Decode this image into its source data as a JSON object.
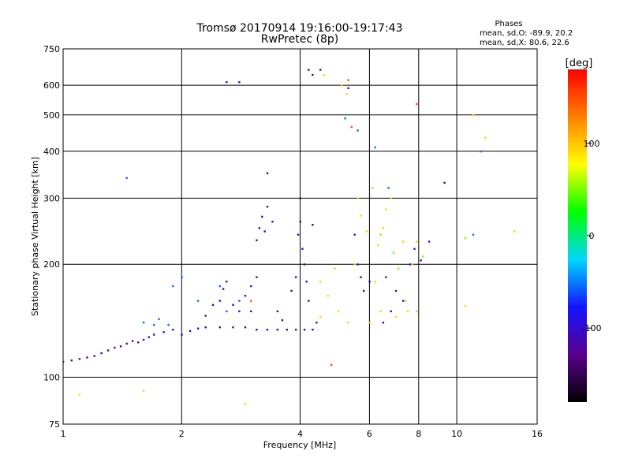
{
  "chart_data": {
    "type": "scatter",
    "title": "Tromsø 20170914 19:16:00-19:17:43",
    "subtitle": "RwPretec (8p)",
    "xlabel": "Frequency [MHz]",
    "ylabel": "Stationary phase Virtual Height [km]",
    "x_scale": "log",
    "y_scale": "log",
    "xlim": [
      1,
      16
    ],
    "ylim": [
      75,
      750
    ],
    "x_ticks": [
      1,
      2,
      4,
      6,
      8,
      10,
      16
    ],
    "y_ticks": [
      75,
      100,
      200,
      300,
      400,
      500,
      600,
      750
    ],
    "grid": true,
    "phases_box": {
      "title": "Phases",
      "line_o": "mean, sd,O: -89.9, 20.2",
      "line_x": "mean, sd,X:  80.6, 22.6"
    },
    "colorbar": {
      "label": "[deg]",
      "ticks": [
        100,
        0,
        -100
      ],
      "range": [
        -180,
        180
      ],
      "colors": [
        "#000000",
        "#5a008c",
        "#1414ff",
        "#00d7ff",
        "#00ff00",
        "#ffff00",
        "#ff8000",
        "#ff0000"
      ]
    },
    "series": [
      {
        "color_phase_deg": -110,
        "points": [
          [
            1.05,
            111
          ],
          [
            1.1,
            112
          ],
          [
            1.15,
            113
          ],
          [
            1.2,
            114
          ],
          [
            1.25,
            116
          ],
          [
            1.3,
            118
          ],
          [
            1.35,
            120
          ],
          [
            1.4,
            121
          ],
          [
            1.45,
            123
          ],
          [
            1.5,
            125
          ],
          [
            1.55,
            124
          ],
          [
            1.6,
            126
          ],
          [
            1.65,
            128
          ],
          [
            1.7,
            130
          ],
          [
            1.8,
            132
          ],
          [
            1.9,
            134
          ],
          [
            2.0,
            130
          ],
          [
            2.1,
            133
          ],
          [
            2.2,
            135
          ],
          [
            2.3,
            136
          ],
          [
            2.5,
            136
          ],
          [
            2.7,
            136
          ],
          [
            2.9,
            136
          ],
          [
            3.1,
            134
          ],
          [
            3.3,
            134
          ],
          [
            3.5,
            134
          ],
          [
            3.7,
            134
          ],
          [
            3.9,
            134
          ],
          [
            4.1,
            134
          ],
          [
            4.3,
            134
          ],
          [
            2.3,
            146
          ],
          [
            2.4,
            156
          ],
          [
            2.5,
            160
          ],
          [
            2.55,
            172
          ],
          [
            2.6,
            180
          ],
          [
            2.7,
            156
          ],
          [
            2.8,
            150
          ],
          [
            2.9,
            165
          ],
          [
            3.0,
            175
          ],
          [
            3.0,
            150
          ],
          [
            3.1,
            185
          ],
          [
            3.1,
            232
          ],
          [
            3.15,
            250
          ],
          [
            3.2,
            268
          ],
          [
            3.25,
            245
          ],
          [
            3.3,
            285
          ],
          [
            3.3,
            350
          ],
          [
            3.4,
            260
          ],
          [
            3.5,
            150
          ],
          [
            3.6,
            142
          ],
          [
            3.8,
            170
          ],
          [
            3.9,
            185
          ],
          [
            3.95,
            240
          ],
          [
            4.0,
            300
          ],
          [
            4.0,
            260
          ],
          [
            4.05,
            220
          ],
          [
            4.1,
            200
          ],
          [
            4.15,
            180
          ],
          [
            4.2,
            160
          ],
          [
            4.3,
            255
          ],
          [
            4.4,
            140
          ],
          [
            5.5,
            240
          ],
          [
            5.6,
            200
          ],
          [
            5.7,
            185
          ],
          [
            5.8,
            170
          ],
          [
            6.0,
            180
          ],
          [
            6.5,
            140
          ],
          [
            6.6,
            185
          ],
          [
            6.8,
            150
          ],
          [
            7.0,
            170
          ],
          [
            7.3,
            160
          ],
          [
            7.6,
            200
          ],
          [
            7.8,
            220
          ],
          [
            8.1,
            205
          ],
          [
            8.5,
            230
          ],
          [
            9.3,
            330
          ],
          [
            4.2,
            660
          ],
          [
            4.5,
            660
          ],
          [
            4.3,
            640
          ],
          [
            2.6,
            612
          ],
          [
            2.8,
            612
          ],
          [
            5.3,
            590
          ]
        ]
      },
      {
        "color_phase_deg": -55,
        "points": [
          [
            1.0,
            110
          ],
          [
            1.6,
            140
          ],
          [
            1.7,
            138
          ],
          [
            1.75,
            143
          ],
          [
            1.85,
            138
          ],
          [
            2.0,
            185
          ],
          [
            2.2,
            160
          ],
          [
            2.5,
            175
          ],
          [
            2.6,
            150
          ],
          [
            2.8,
            160
          ],
          [
            1.45,
            340
          ],
          [
            1.9,
            175
          ],
          [
            5.2,
            490
          ],
          [
            5.6,
            455
          ],
          [
            6.2,
            410
          ],
          [
            11.5,
            400
          ],
          [
            6.7,
            320
          ],
          [
            11.0,
            240
          ]
        ]
      },
      {
        "color_phase_deg": 95,
        "points": [
          [
            4.5,
            180
          ],
          [
            4.5,
            145
          ],
          [
            4.7,
            165
          ],
          [
            4.9,
            195
          ],
          [
            5.0,
            150
          ],
          [
            5.3,
            140
          ],
          [
            5.5,
            200
          ],
          [
            5.6,
            300
          ],
          [
            5.7,
            270
          ],
          [
            5.9,
            245
          ],
          [
            6.0,
            140
          ],
          [
            6.2,
            180
          ],
          [
            6.3,
            225
          ],
          [
            6.4,
            150
          ],
          [
            6.5,
            250
          ],
          [
            6.6,
            280
          ],
          [
            6.8,
            300
          ],
          [
            7.0,
            145
          ],
          [
            7.3,
            230
          ],
          [
            7.5,
            150
          ],
          [
            7.7,
            200
          ],
          [
            7.9,
            230
          ],
          [
            5.1,
            600
          ],
          [
            5.25,
            570
          ],
          [
            4.6,
            640
          ],
          [
            1.1,
            90
          ],
          [
            1.6,
            92
          ],
          [
            2.9,
            85
          ],
          [
            11.0,
            500
          ],
          [
            11.8,
            435
          ],
          [
            10.5,
            155
          ],
          [
            14.0,
            245
          ]
        ]
      },
      {
        "color_phase_deg": 50,
        "points": [
          [
            6.1,
            320
          ],
          [
            6.4,
            240
          ],
          [
            6.9,
            215
          ],
          [
            7.1,
            195
          ],
          [
            7.4,
            160
          ],
          [
            7.9,
            150
          ],
          [
            8.2,
            210
          ],
          [
            10.5,
            235
          ]
        ]
      },
      {
        "color_phase_deg": 150,
        "points": [
          [
            4.8,
            108
          ],
          [
            5.4,
            465
          ],
          [
            3.0,
            160
          ],
          [
            7.9,
            535
          ],
          [
            5.3,
            620
          ]
        ]
      }
    ]
  }
}
